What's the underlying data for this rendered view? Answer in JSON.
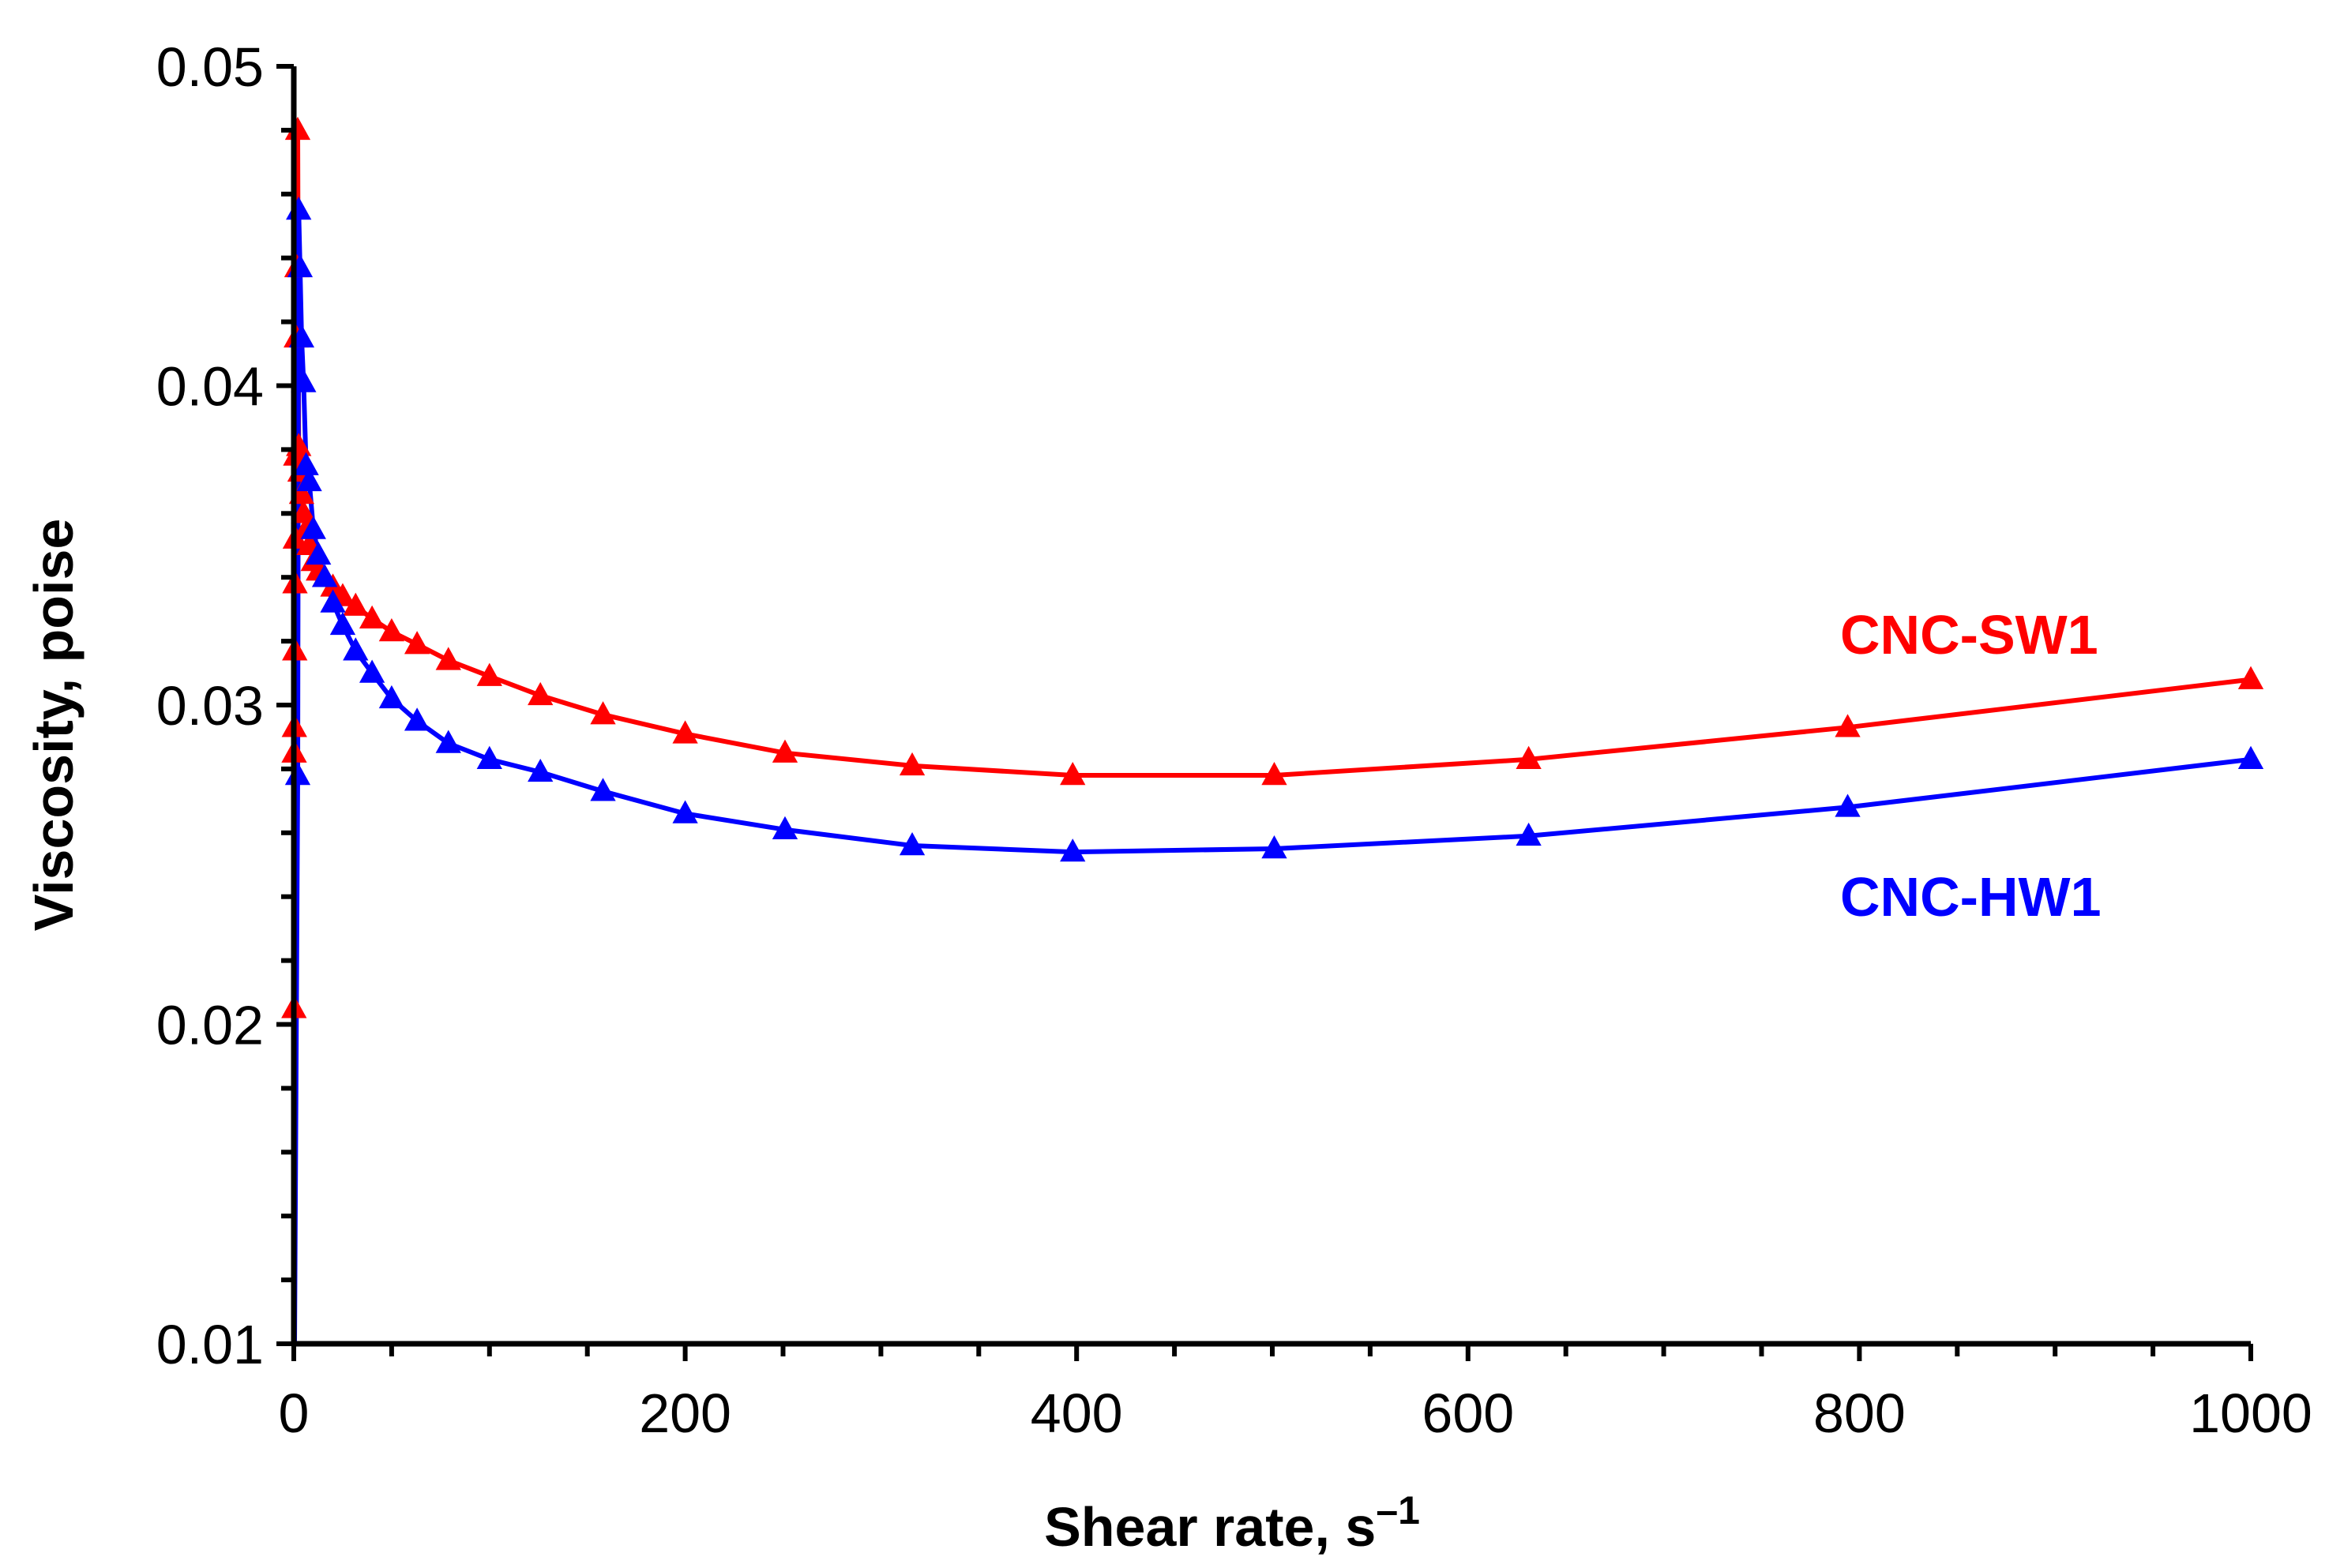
{
  "chart_data": {
    "type": "line",
    "xlabel": "Shear rate, s",
    "xlabel_unit_superscript": "–1",
    "ylabel": "Viscosity, poise",
    "xlim": [
      0,
      1000
    ],
    "ylim": [
      0.01,
      0.05
    ],
    "xticks": [
      "0",
      "200",
      "400",
      "600",
      "800",
      "1000"
    ],
    "yticks": [
      "0.01",
      "0.02",
      "0.03",
      "0.04",
      "0.05"
    ],
    "grid": false,
    "series": [
      {
        "name": "CNC-SW1",
        "color": "#ff0000",
        "marker": "triangle",
        "x": [
          0.1,
          0.2,
          0.3,
          0.5,
          0.6,
          0.8,
          1.0,
          1.3,
          1.6,
          2.0,
          2.5,
          3.2,
          4.0,
          5.0,
          6.3,
          7.9,
          10,
          12.6,
          15.8,
          20,
          25,
          31.6,
          40,
          50,
          63,
          79,
          100,
          126,
          158,
          200,
          251,
          316,
          398,
          501,
          631,
          794,
          1000
        ],
        "y": [
          0.0205,
          0.0285,
          0.0293,
          0.0317,
          0.0338,
          0.0352,
          0.0378,
          0.0415,
          0.0437,
          0.048,
          0.0381,
          0.0373,
          0.0366,
          0.036,
          0.0355,
          0.035,
          0.0345,
          0.0342,
          0.034,
          0.0337,
          0.0334,
          0.0331,
          0.0327,
          0.0323,
          0.0319,
          0.0314,
          0.0309,
          0.0303,
          0.0297,
          0.0291,
          0.0285,
          0.0281,
          0.0278,
          0.0278,
          0.0283,
          0.0293,
          0.0308
        ]
      },
      {
        "name": "CNC-HW1",
        "color": "#0000ff",
        "marker": "triangle",
        "x": [
          2,
          2.5,
          3.2,
          4,
          5,
          6.3,
          7.9,
          10,
          12.6,
          15.8,
          20,
          25,
          31.6,
          40,
          50,
          63,
          79,
          100,
          126,
          158,
          200,
          251,
          316,
          398,
          501,
          631,
          794,
          1000
        ],
        "y": [
          0.0278,
          0.0455,
          0.0437,
          0.0415,
          0.0401,
          0.0375,
          0.037,
          0.0355,
          0.0347,
          0.034,
          0.0332,
          0.0325,
          0.0317,
          0.031,
          0.0302,
          0.0295,
          0.0288,
          0.0283,
          0.0279,
          0.0273,
          0.0266,
          0.0261,
          0.0256,
          0.0254,
          0.0255,
          0.0259,
          0.0268,
          0.0283
        ]
      }
    ]
  }
}
